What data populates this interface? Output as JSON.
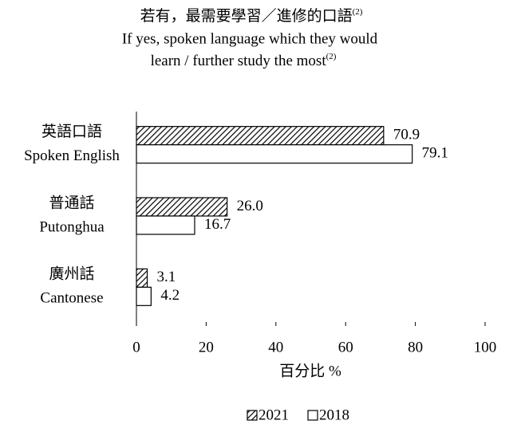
{
  "chart_data": {
    "type": "hbar",
    "title": [
      "若有，最需要學習／進修的口語",
      "If yes, spoken language which they would",
      "learn / further study the most"
    ],
    "title_note": "(2)",
    "categories": [
      [
        "英語口語",
        "Spoken English"
      ],
      [
        "普通話",
        "Putonghua"
      ],
      [
        "廣州話",
        "Cantonese"
      ]
    ],
    "series": [
      {
        "name": "2021",
        "hatch": true,
        "values": [
          70.9,
          26.0,
          3.1
        ],
        "value_labels": [
          "70.9",
          "26.0",
          "3.1"
        ]
      },
      {
        "name": "2018",
        "hatch": false,
        "values": [
          79.1,
          16.7,
          4.2
        ],
        "value_labels": [
          "79.1",
          "16.7",
          "4.2"
        ]
      }
    ],
    "xlabel": "百分比 %",
    "xlim": [
      0,
      100
    ],
    "xticks": [
      0,
      20,
      40,
      60,
      80,
      100
    ],
    "grid": false
  }
}
